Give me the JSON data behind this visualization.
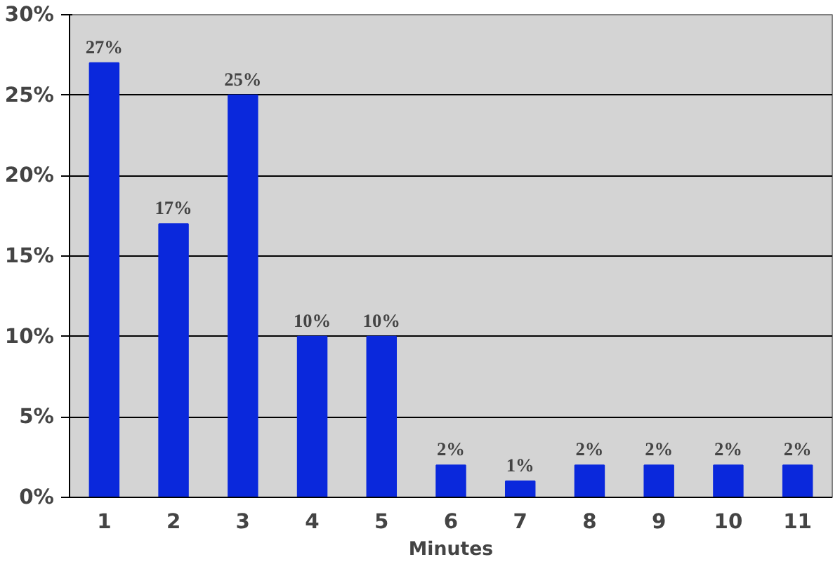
{
  "chart_data": {
    "type": "bar",
    "xlabel": "Minutes",
    "categories": [
      "1",
      "2",
      "3",
      "4",
      "5",
      "6",
      "7",
      "8",
      "9",
      "10",
      "11"
    ],
    "values": [
      27,
      17,
      25,
      10,
      10,
      2,
      1,
      2,
      2,
      2,
      2
    ],
    "value_labels": [
      "27%",
      "17%",
      "25%",
      "10%",
      "10%",
      "2%",
      "1%",
      "2%",
      "2%",
      "2%",
      "2%"
    ],
    "color": "#0a28dc",
    "ylim": [
      0,
      30
    ],
    "yticks": [
      {
        "value": 0,
        "label": "0%"
      },
      {
        "value": 5,
        "label": "5%"
      },
      {
        "value": 10,
        "label": "10%"
      },
      {
        "value": 15,
        "label": "15%"
      },
      {
        "value": 20,
        "label": "20%"
      },
      {
        "value": 25,
        "label": "25%"
      },
      {
        "value": 30,
        "label": "30%"
      }
    ],
    "grid": "y",
    "legend": false
  }
}
